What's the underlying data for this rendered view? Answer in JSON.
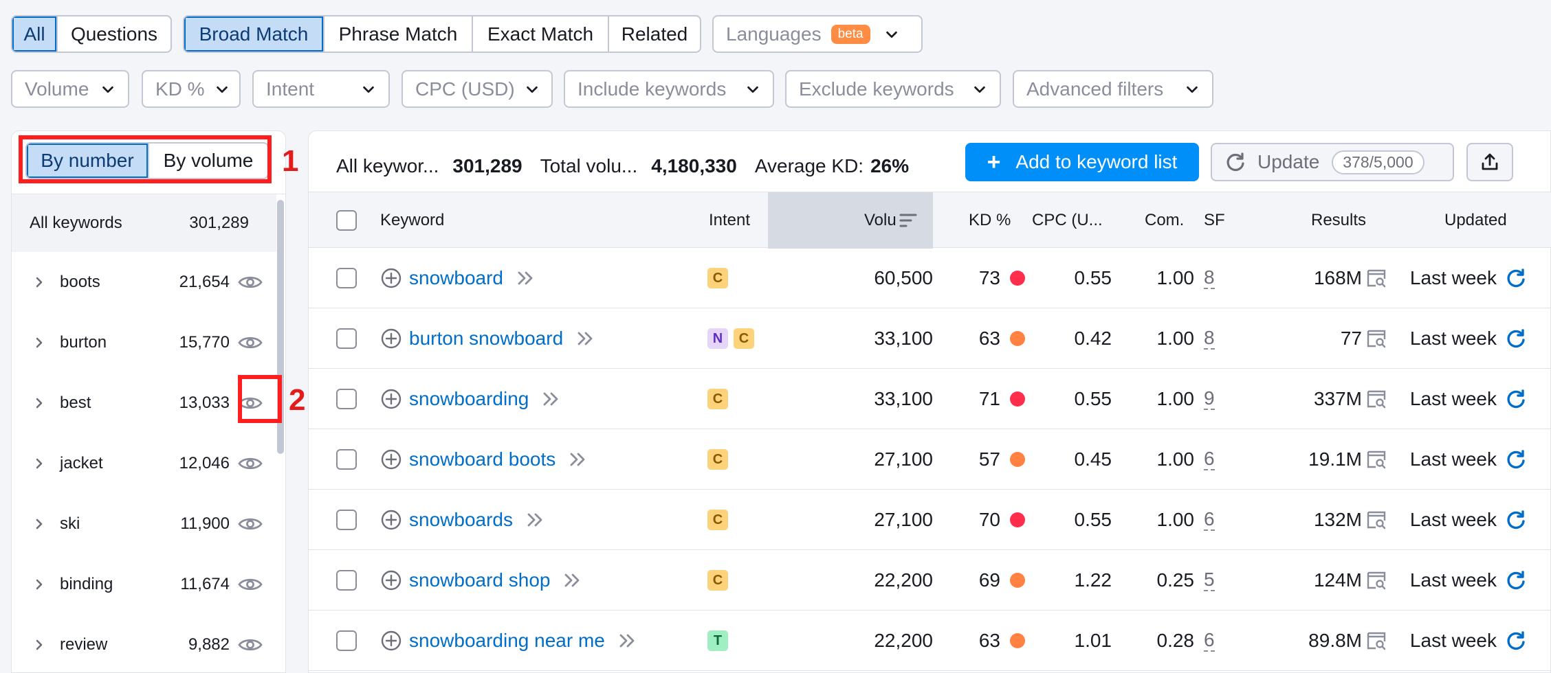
{
  "tabs_scope": [
    {
      "label": "All",
      "active": true
    },
    {
      "label": "Questions",
      "active": false
    }
  ],
  "tabs_match": [
    {
      "label": "Broad Match",
      "active": true
    },
    {
      "label": "Phrase Match",
      "active": false
    },
    {
      "label": "Exact Match",
      "active": false
    },
    {
      "label": "Related",
      "active": false
    }
  ],
  "languages": {
    "label": "Languages",
    "badge": "beta"
  },
  "filters": [
    "Volume",
    "KD %",
    "Intent",
    "CPC (USD)",
    "Include keywords",
    "Exclude keywords",
    "Advanced filters"
  ],
  "left_panel": {
    "toggle": [
      {
        "label": "By number",
        "active": true
      },
      {
        "label": "By volume",
        "active": false
      }
    ],
    "all_keywords": {
      "label": "All keywords",
      "count": "301,289"
    },
    "groups": [
      {
        "name": "boots",
        "count": "21,654"
      },
      {
        "name": "burton",
        "count": "15,770"
      },
      {
        "name": "best",
        "count": "13,033"
      },
      {
        "name": "jacket",
        "count": "12,046"
      },
      {
        "name": "ski",
        "count": "11,900"
      },
      {
        "name": "binding",
        "count": "11,674"
      },
      {
        "name": "review",
        "count": "9,882"
      }
    ],
    "annotations": [
      "1",
      "2"
    ]
  },
  "summary": {
    "all_keywords_label": "All keywor...",
    "all_keywords_value": "301,289",
    "total_volume_label": "Total volu...",
    "total_volume_value": "4,180,330",
    "avg_kd_label": "Average KD:",
    "avg_kd_value": "26%"
  },
  "actions": {
    "add_label": "Add to keyword list",
    "update_label": "Update",
    "update_quota": "378/5,000"
  },
  "columns": {
    "keyword": "Keyword",
    "intent": "Intent",
    "volume": "Volu",
    "kd": "KD %",
    "cpc": "CPC (U...",
    "com": "Com.",
    "sf": "SF",
    "results": "Results",
    "updated": "Updated"
  },
  "rows": [
    {
      "keyword": "snowboard",
      "intents": [
        "C"
      ],
      "volume": "60,500",
      "kd": "73",
      "kd_color": "#ff2e4d",
      "cpc": "0.55",
      "com": "1.00",
      "sf": "8",
      "results": "168M",
      "updated": "Last week"
    },
    {
      "keyword": "burton snowboard",
      "intents": [
        "N",
        "C"
      ],
      "volume": "33,100",
      "kd": "63",
      "kd_color": "#ff8243",
      "cpc": "0.42",
      "com": "1.00",
      "sf": "8",
      "results": "77",
      "updated": "Last week"
    },
    {
      "keyword": "snowboarding",
      "intents": [
        "C"
      ],
      "volume": "33,100",
      "kd": "71",
      "kd_color": "#ff2e4d",
      "cpc": "0.55",
      "com": "1.00",
      "sf": "9",
      "results": "337M",
      "updated": "Last week"
    },
    {
      "keyword": "snowboard boots",
      "intents": [
        "C"
      ],
      "volume": "27,100",
      "kd": "57",
      "kd_color": "#ff8243",
      "cpc": "0.45",
      "com": "1.00",
      "sf": "6",
      "results": "19.1M",
      "updated": "Last week"
    },
    {
      "keyword": "snowboards",
      "intents": [
        "C"
      ],
      "volume": "27,100",
      "kd": "70",
      "kd_color": "#ff2e4d",
      "cpc": "0.55",
      "com": "1.00",
      "sf": "6",
      "results": "132M",
      "updated": "Last week"
    },
    {
      "keyword": "snowboard shop",
      "intents": [
        "C"
      ],
      "volume": "22,200",
      "kd": "69",
      "kd_color": "#ff8243",
      "cpc": "1.22",
      "com": "0.25",
      "sf": "5",
      "results": "124M",
      "updated": "Last week"
    },
    {
      "keyword": "snowboarding near me",
      "intents": [
        "T"
      ],
      "volume": "22,200",
      "kd": "63",
      "kd_color": "#ff8243",
      "cpc": "1.01",
      "com": "0.28",
      "sf": "6",
      "results": "89.8M",
      "updated": "Last week"
    }
  ]
}
